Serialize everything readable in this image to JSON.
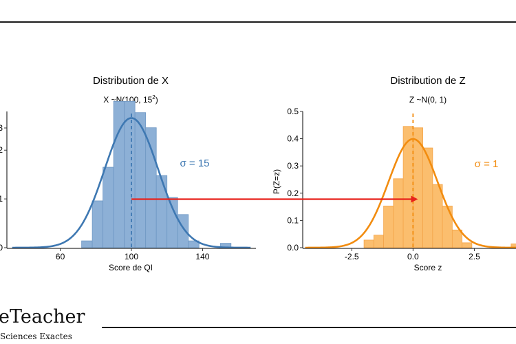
{
  "footer": {
    "brand_name": "eTeacher",
    "brand_subtitle": "Sciences Exactes"
  },
  "colors": {
    "left_bar_fill": "#8db0d6",
    "left_bar_stroke": "#6f98c4",
    "left_curve": "#3e78b2",
    "right_bar_fill": "#fbbe6e",
    "right_bar_stroke": "#f4a54a",
    "right_curve": "#f28c0f",
    "arrow": "#e8221b",
    "axis": "#000000"
  },
  "chart_data": [
    {
      "type": "histogram",
      "title": "Distribution de X",
      "subtitle_main": "X ~N(100, 15",
      "subtitle_sup": "2",
      "subtitle_end": ")",
      "xlabel": "Score de QI",
      "ylabel": "",
      "xlim": [
        30,
        170
      ],
      "ylim": [
        0,
        0.0285
      ],
      "xticks": [
        60,
        100,
        140
      ],
      "yticks": [
        0.0,
        0.01,
        0.02
      ],
      "ytick_labels": [
        "0",
        "1",
        "2"
      ],
      "y_axis_top_label": "3",
      "bin_width": 6,
      "bins": [
        {
          "x": 72,
          "density": 0.0014
        },
        {
          "x": 78,
          "density": 0.0096
        },
        {
          "x": 84,
          "density": 0.0165
        },
        {
          "x": 90,
          "density": 0.03
        },
        {
          "x": 96,
          "density": 0.03
        },
        {
          "x": 102,
          "density": 0.0277
        },
        {
          "x": 108,
          "density": 0.0246
        },
        {
          "x": 114,
          "density": 0.0148
        },
        {
          "x": 120,
          "density": 0.0103
        },
        {
          "x": 126,
          "density": 0.0068
        },
        {
          "x": 132,
          "density": 0.0014
        },
        {
          "x": 150,
          "density": 0.0009
        }
      ],
      "normal_curve": {
        "mean": 100,
        "sd": 15,
        "x_range": [
          33,
          167
        ]
      },
      "mean_line_x": 100,
      "annotation": "σ = 15"
    },
    {
      "type": "histogram",
      "title": "Distribution de Z",
      "subtitle_main": "Z ~N(0, 1)",
      "xlabel": "Score z",
      "ylabel": "P(Z=z)",
      "xlim": [
        -4.5,
        4.2
      ],
      "ylim": [
        0,
        0.51
      ],
      "xticks": [
        -2.5,
        0.0,
        2.5
      ],
      "xtick_labels": [
        "-2.5",
        "0.0",
        "2.5"
      ],
      "yticks": [
        0.0,
        0.1,
        0.2,
        0.3,
        0.4,
        0.5
      ],
      "ytick_labels": [
        "0.0",
        "0.1",
        "0.2",
        "0.3",
        "0.4",
        "0.5"
      ],
      "bin_width": 0.4,
      "bins": [
        {
          "x": -2.0,
          "density": 0.028
        },
        {
          "x": -1.6,
          "density": 0.046
        },
        {
          "x": -1.2,
          "density": 0.153
        },
        {
          "x": -0.8,
          "density": 0.253
        },
        {
          "x": -0.4,
          "density": 0.445
        },
        {
          "x": 0.0,
          "density": 0.44
        },
        {
          "x": 0.4,
          "density": 0.366
        },
        {
          "x": 0.8,
          "density": 0.232
        },
        {
          "x": 1.2,
          "density": 0.153
        },
        {
          "x": 1.6,
          "density": 0.065
        },
        {
          "x": 2.0,
          "density": 0.018
        },
        {
          "x": 4.0,
          "density": 0.014
        }
      ],
      "normal_curve": {
        "mean": 0,
        "sd": 1,
        "x_range": [
          -4.4,
          4.2
        ]
      },
      "mean_line_x": 0,
      "annotation": "σ = 1"
    }
  ],
  "arrow": {
    "from_x_data": 100,
    "to_x_data": 0.2,
    "y_data_right": 0.178
  }
}
